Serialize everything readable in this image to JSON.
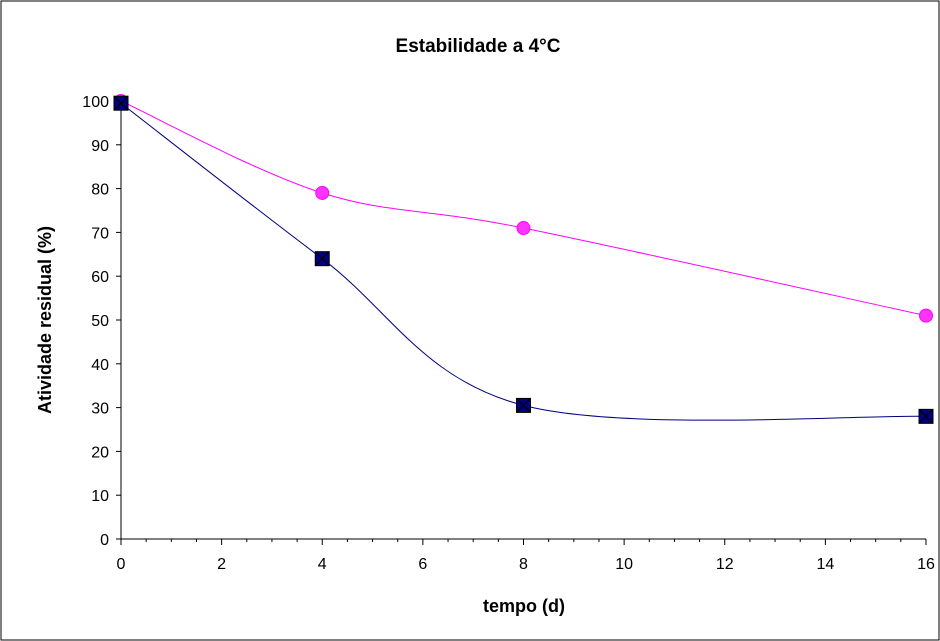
{
  "chart_data": {
    "type": "line",
    "title": "Estabilidade a 4°C",
    "xlabel": "tempo (d)",
    "ylabel": "Atividade residual (%)",
    "xlim": [
      0,
      16
    ],
    "ylim": [
      0,
      100
    ],
    "xticks": [
      0,
      2,
      4,
      6,
      8,
      10,
      12,
      14,
      16
    ],
    "yticks": [
      0,
      10,
      20,
      30,
      40,
      50,
      60,
      70,
      80,
      90,
      100
    ],
    "x_minor_step": 0.5,
    "grid": false,
    "legend": "none",
    "smoothed": true,
    "series": [
      {
        "marker": "circle",
        "color": "#ff00ff",
        "marker_fill": "#ff33ff",
        "x": [
          0,
          4,
          8,
          16
        ],
        "y": [
          100,
          79,
          71,
          51
        ]
      },
      {
        "marker": "square-x",
        "color": "#000080",
        "marker_fill": "#000080",
        "x": [
          0,
          4,
          8,
          16
        ],
        "y": [
          99.5,
          64,
          30.5,
          28
        ]
      }
    ]
  }
}
